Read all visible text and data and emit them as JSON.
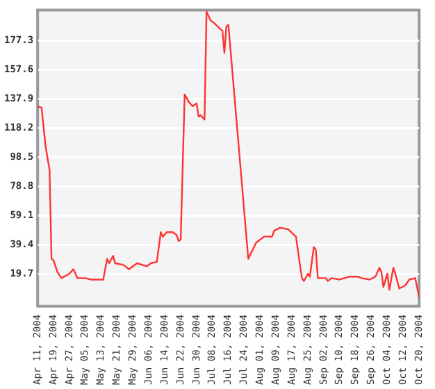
{
  "chart_data": {
    "type": "line",
    "grid": "y",
    "marker": "none",
    "line_style": "solid",
    "x": [
      "2004-04-11",
      "2004-04-13",
      "2004-04-15",
      "2004-04-17",
      "2004-04-18",
      "2004-04-19",
      "2004-04-21",
      "2004-04-23",
      "2004-04-27",
      "2004-04-29",
      "2004-05-01",
      "2004-05-05",
      "2004-05-08",
      "2004-05-14",
      "2004-05-16",
      "2004-05-17",
      "2004-05-19",
      "2004-05-20",
      "2004-05-24",
      "2004-05-27",
      "2004-05-31",
      "2004-06-05",
      "2004-06-07",
      "2004-06-10",
      "2004-06-12",
      "2004-06-13",
      "2004-06-15",
      "2004-06-18",
      "2004-06-20",
      "2004-06-21",
      "2004-06-22",
      "2004-06-24",
      "2004-06-26",
      "2004-06-28",
      "2004-06-30",
      "2004-07-01",
      "2004-07-02",
      "2004-07-04",
      "2004-07-05",
      "2004-07-07",
      "2004-07-09",
      "2004-07-12",
      "2004-07-13",
      "2004-07-14",
      "2004-07-15",
      "2004-07-16",
      "2004-07-26",
      "2004-07-30",
      "2004-08-03",
      "2004-08-07",
      "2004-08-08",
      "2004-08-11",
      "2004-08-15",
      "2004-08-19",
      "2004-08-22",
      "2004-08-23",
      "2004-08-25",
      "2004-08-26",
      "2004-08-28",
      "2004-08-29",
      "2004-08-30",
      "2004-09-03",
      "2004-09-04",
      "2004-09-06",
      "2004-09-10",
      "2004-09-15",
      "2004-09-19",
      "2004-09-21",
      "2004-09-25",
      "2004-09-28",
      "2004-09-30",
      "2004-10-01",
      "2004-10-02",
      "2004-10-04",
      "2004-10-05",
      "2004-10-07",
      "2004-10-08",
      "2004-10-10",
      "2004-10-13",
      "2004-10-15",
      "2004-10-18",
      "2004-10-20"
    ],
    "series": [
      {
        "color": "#ff3333",
        "values": [
          133,
          132,
          106,
          90,
          30,
          29,
          21,
          17,
          20,
          23,
          17,
          17,
          16,
          16,
          30,
          27,
          32,
          27,
          26,
          23,
          27,
          25,
          27,
          28,
          48,
          45,
          48,
          48,
          46,
          42,
          43,
          141,
          136,
          133,
          135,
          126,
          127,
          124,
          197,
          191,
          189,
          185,
          184,
          169,
          187,
          188,
          30,
          41,
          45,
          45,
          49,
          51,
          50,
          45,
          17,
          15,
          20,
          18,
          38,
          36,
          17,
          17,
          15,
          17,
          16,
          18,
          18,
          17,
          16,
          18,
          24,
          21,
          11,
          20,
          9,
          24,
          20,
          10,
          12,
          16,
          17,
          4
        ]
      }
    ],
    "xlim": [
      "2004-04-11",
      "2004-10-20"
    ],
    "xticks": [
      {
        "value": "2004-04-11",
        "label": "Apr 11, 2004"
      },
      {
        "value": "2004-04-19",
        "label": "Apr 19, 2004"
      },
      {
        "value": "2004-04-27",
        "label": "Apr 27, 2004"
      },
      {
        "value": "2004-05-05",
        "label": "May 05, 2004"
      },
      {
        "value": "2004-05-13",
        "label": "May 13, 2004"
      },
      {
        "value": "2004-05-21",
        "label": "May 21, 2004"
      },
      {
        "value": "2004-05-29",
        "label": "May 29, 2004"
      },
      {
        "value": "2004-06-06",
        "label": "Jun 06, 2004"
      },
      {
        "value": "2004-06-14",
        "label": "Jun 14, 2004"
      },
      {
        "value": "2004-06-22",
        "label": "Jun 22, 2004"
      },
      {
        "value": "2004-06-30",
        "label": "Jun 30, 2004"
      },
      {
        "value": "2004-07-08",
        "label": "Jul 08, 2004"
      },
      {
        "value": "2004-07-16",
        "label": "Jul 16, 2004"
      },
      {
        "value": "2004-07-24",
        "label": "Jul 24, 2004"
      },
      {
        "value": "2004-08-01",
        "label": "Aug 01, 2004"
      },
      {
        "value": "2004-08-09",
        "label": "Aug 09, 2004"
      },
      {
        "value": "2004-08-17",
        "label": "Aug 17, 2004"
      },
      {
        "value": "2004-08-25",
        "label": "Aug 25, 2004"
      },
      {
        "value": "2004-09-02",
        "label": "Sep 02, 2004"
      },
      {
        "value": "2004-09-10",
        "label": "Sep 10, 2004"
      },
      {
        "value": "2004-09-18",
        "label": "Sep 18, 2004"
      },
      {
        "value": "2004-09-26",
        "label": "Sep 26, 2004"
      },
      {
        "value": "2004-10-04",
        "label": "Oct 04, 2004"
      },
      {
        "value": "2004-10-12",
        "label": "Oct 12, 2004"
      },
      {
        "value": "2004-10-20",
        "label": "Oct 20, 2004"
      }
    ],
    "ylim": [
      -2,
      198
    ],
    "yticks": [
      19.7,
      39.4,
      59.1,
      78.8,
      98.5,
      118.2,
      137.9,
      157.6,
      177.3
    ]
  }
}
